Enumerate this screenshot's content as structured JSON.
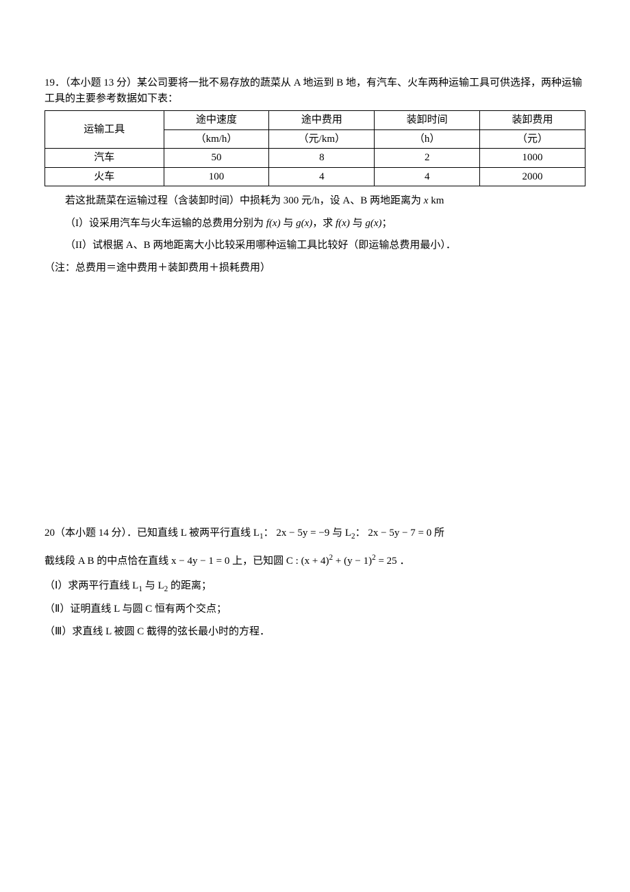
{
  "q19": {
    "intro_prefix": "19．（本小题 13 分）某公司要将一批不易存放的蔬菜从 A 地运到 B 地，有汽车、火车两种运输工具可供选择，两种运输工具的主要参考数据如下表：",
    "table": {
      "headers": {
        "tool": "运输工具",
        "speed_l1": "途中速度",
        "speed_l2": "（km/h）",
        "cost_l1": "途中费用",
        "cost_l2": "（元/km）",
        "load_time_l1": "装卸时间",
        "load_time_l2": "（h）",
        "load_cost_l1": "装卸费用",
        "load_cost_l2": "（元）"
      },
      "rows": [
        {
          "tool": "汽车",
          "speed": "50",
          "cost": "8",
          "load_time": "2",
          "load_cost": "1000"
        },
        {
          "tool": "火车",
          "speed": "100",
          "cost": "4",
          "load_time": "4",
          "load_cost": "2000"
        }
      ]
    },
    "loss_line_pre": "若这批蔬菜在运输过程（含装卸时间）中损耗为 300 元/h，设 A、B  两地距离为 ",
    "loss_line_var": "x",
    "loss_line_post": " km",
    "part1_pre": "（I）设采用汽车与火车运输的总费用分别为 ",
    "part1_f": "f(x)",
    "part1_mid1": " 与 ",
    "part1_g": "g(x)",
    "part1_mid2": "，求 ",
    "part1_f2": "f(x)",
    "part1_mid3": " 与 ",
    "part1_g2": "g(x)",
    "part1_end": "；",
    "part2": "（II）试根据 A、B 两地距离大小比较采用哪种运输工具比较好（即运输总费用最小）．",
    "note": "（注：总费用＝途中费用＋装卸费用＋损耗费用）"
  },
  "q20": {
    "line1_a": "20（本小题 14 分）．已知直线 L 被两平行直线 L",
    "line1_sub1": "1",
    "line1_b": "：",
    "line1_eq1": " 2x − 5y = −9 ",
    "line1_c": "与 L",
    "line1_sub2": "2",
    "line1_d": "：",
    "line1_eq2": " 2x − 5y − 7 = 0 ",
    "line1_e": "所",
    "line2_a": "截线段 A B 的中点恰在直线 ",
    "line2_eq1": "x − 4y − 1 = 0",
    "line2_b": " 上，已知圆 ",
    "line2_eq2_a": "C : (x + 4)",
    "line2_sup1": "2",
    "line2_eq2_b": " + (y − 1)",
    "line2_sup2": "2",
    "line2_eq2_c": " = 25",
    "line2_c": " ．",
    "p1_a": "（Ⅰ）求两平行直线 L",
    "p1_sub1": "1",
    "p1_b": " 与 L",
    "p1_sub2": "2",
    "p1_c": " 的距离；",
    "p2": "（Ⅱ）证明直线 L 与圆 C 恒有两个交点；",
    "p3": "（Ⅲ）求直线 L 被圆 C 截得的弦长最小时的方程．"
  }
}
